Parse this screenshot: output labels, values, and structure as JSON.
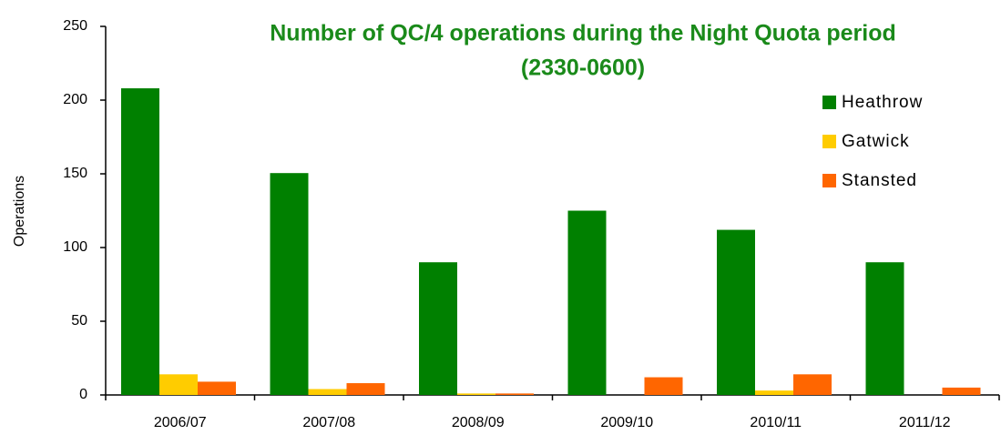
{
  "chart_data": {
    "type": "bar",
    "title": "Number of QC/4 operations during the Night Quota period",
    "subtitle": "(2330-0600)",
    "y_label": "Operations",
    "categories": [
      "2006/07",
      "2007/08",
      "2008/09",
      "2009/10",
      "2010/11",
      "2011/12"
    ],
    "series": [
      {
        "name": "Heathrow",
        "color": "#008000",
        "values": [
          208,
          150.5,
          90,
          125,
          112,
          90
        ]
      },
      {
        "name": "Gatwick",
        "color": "#ffcc00",
        "values": [
          14,
          4,
          1,
          0,
          3,
          0
        ]
      },
      {
        "name": "Stansted",
        "color": "#ff6600",
        "values": [
          9,
          8,
          1,
          12,
          14,
          5
        ]
      }
    ],
    "ylim": [
      0,
      250
    ],
    "yticks": [
      0,
      50,
      100,
      150,
      200,
      250
    ],
    "grid": false,
    "legend": "top-right"
  }
}
